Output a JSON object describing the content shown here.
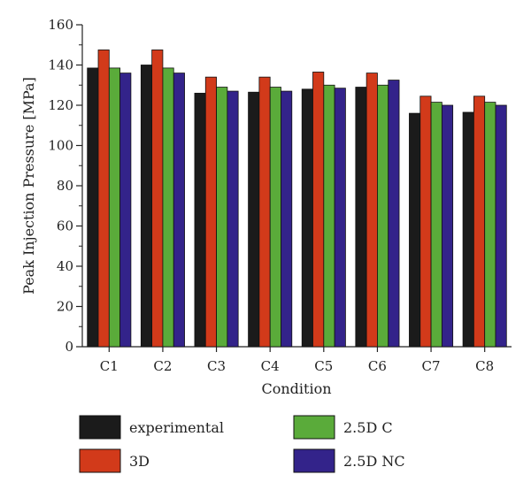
{
  "chart_data": {
    "type": "bar",
    "xlabel": "Condition",
    "ylabel": "Peak Injection Pressure [MPa]",
    "ylim": [
      0,
      160
    ],
    "yticks": [
      "0",
      "20",
      "40",
      "60",
      "80",
      "100",
      "120",
      "140",
      "160"
    ],
    "categories": [
      "C1",
      "C2",
      "C3",
      "C4",
      "C5",
      "C6",
      "C7",
      "C8"
    ],
    "grid": false,
    "legend_position": "bottom",
    "series": [
      {
        "name": "experimental",
        "color": "#1b1b1b",
        "values": [
          138.5,
          140,
          126,
          126.5,
          128,
          129,
          116,
          116.5
        ]
      },
      {
        "name": "3D",
        "color": "#d23a1a",
        "values": [
          147.5,
          147.5,
          134,
          134,
          136.5,
          136,
          124.5,
          124.5
        ]
      },
      {
        "name": "2.5D C",
        "color": "#5aab3a",
        "values": [
          138.5,
          138.5,
          129,
          129,
          130,
          130,
          121.5,
          121.5
        ]
      },
      {
        "name": "2.5D NC",
        "color": "#33238a",
        "values": [
          136,
          136,
          127,
          127,
          128.5,
          132.5,
          120,
          120
        ]
      }
    ]
  }
}
